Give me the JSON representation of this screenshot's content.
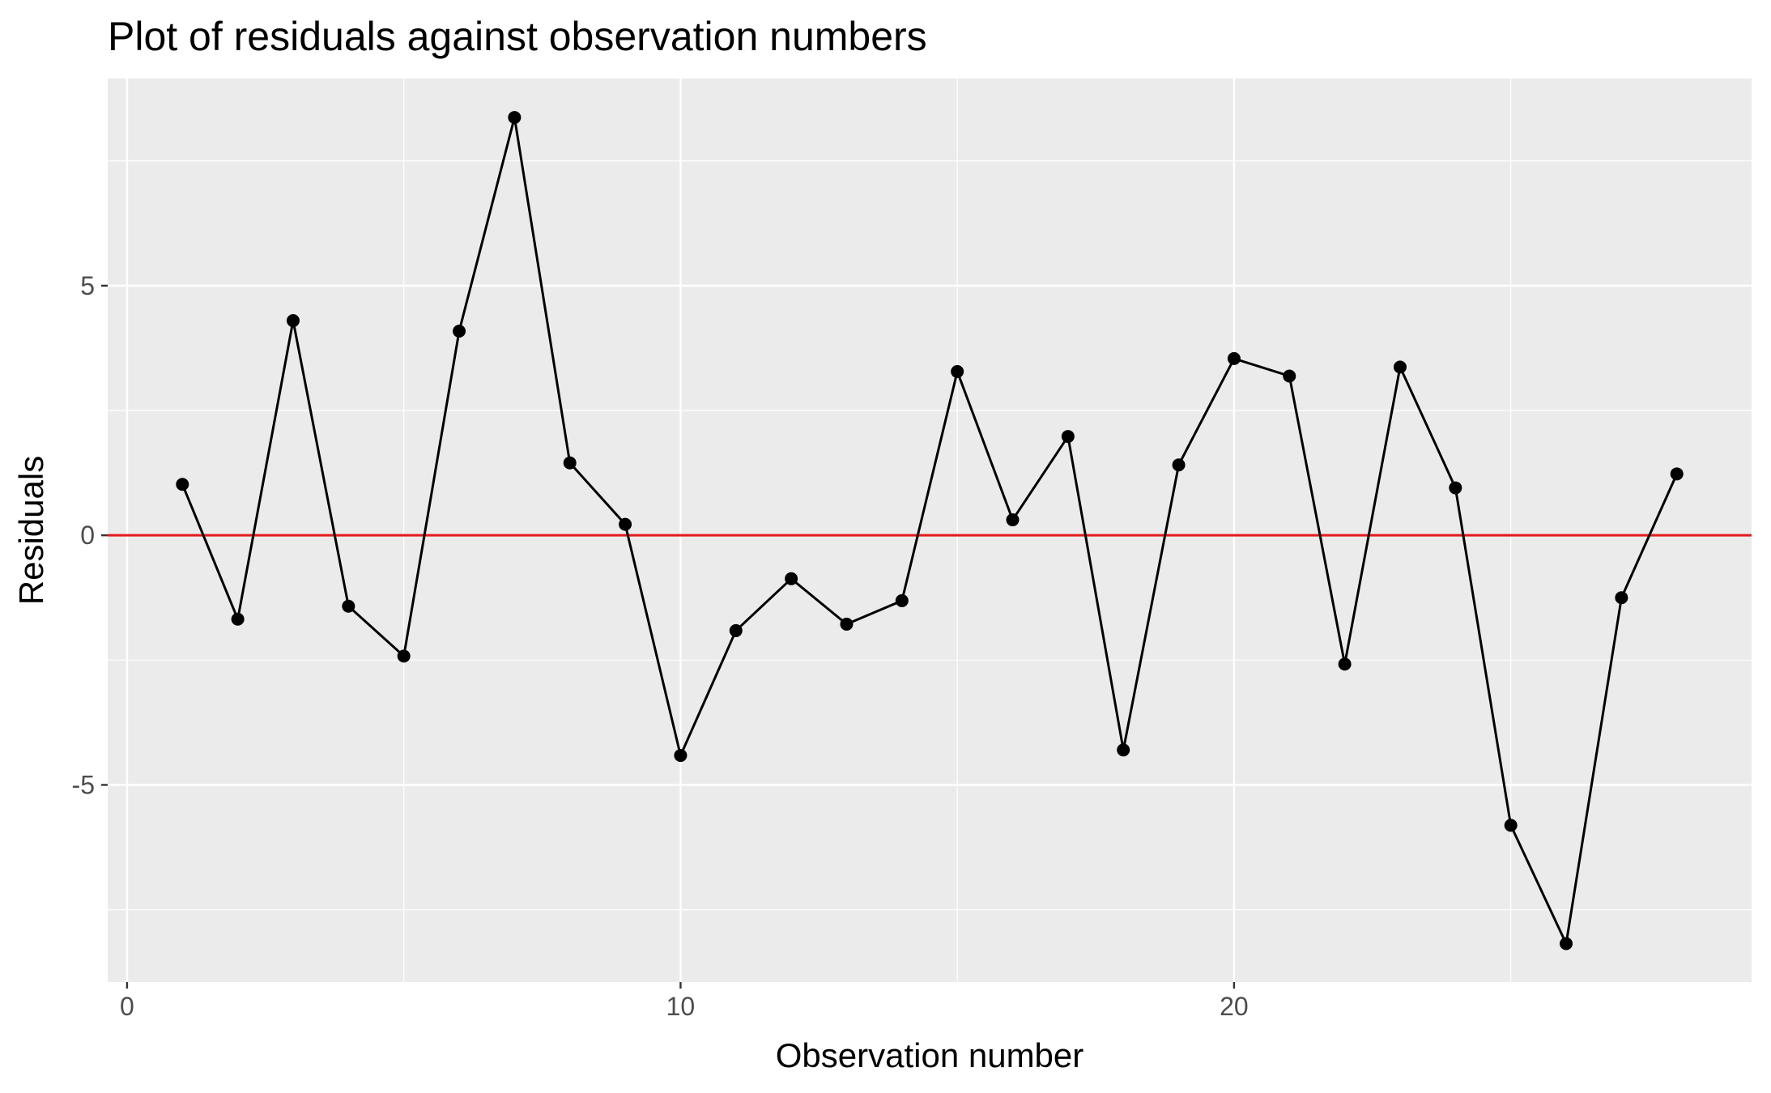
{
  "chart_data": {
    "type": "line",
    "title": "Plot of residuals against observation numbers",
    "xlabel": "Observation number",
    "ylabel": "Residuals",
    "xlim": [
      -0.35,
      29.35
    ],
    "ylim": [
      -8.95,
      9.15
    ],
    "x_ticks": [
      0,
      10,
      20
    ],
    "y_ticks": [
      -5,
      0,
      5
    ],
    "x_tick_labels": [
      "0",
      "10",
      "20"
    ],
    "y_tick_labels": [
      "-5",
      "0",
      "5"
    ],
    "grid": true,
    "reference_line": {
      "y": 0,
      "color": "#e41a1c"
    },
    "colors": {
      "panel": "#ebebeb",
      "grid": "#ffffff",
      "line": "#000000",
      "points": "#000000"
    },
    "series": [
      {
        "x": [
          1,
          2,
          3,
          4,
          5,
          6,
          7,
          8,
          9,
          10,
          11,
          12,
          13,
          14,
          15,
          16,
          17,
          18,
          19,
          20,
          21,
          22,
          23,
          24,
          25,
          26,
          27,
          28
        ],
        "values": [
          1.02,
          -1.68,
          4.3,
          -1.42,
          -2.42,
          4.09,
          8.37,
          1.45,
          0.22,
          -4.41,
          -1.91,
          -0.87,
          -1.78,
          -1.31,
          3.28,
          0.31,
          1.98,
          -4.3,
          1.41,
          3.54,
          3.19,
          -2.58,
          3.37,
          0.95,
          -5.81,
          -8.18,
          -1.25,
          1.23
        ]
      }
    ]
  }
}
